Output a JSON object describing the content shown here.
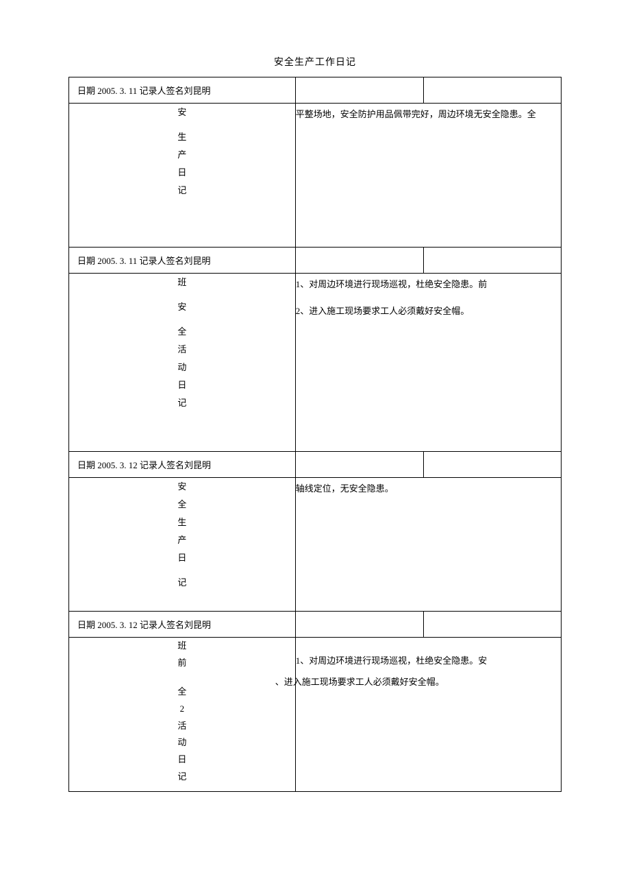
{
  "title": "安全生产工作日记",
  "colors": {
    "border": "#000000",
    "text": "#000000",
    "background": "#ffffff"
  },
  "typography": {
    "font_family": "SimSun",
    "title_fontsize": 14,
    "body_fontsize": 13
  },
  "sections": [
    {
      "header": {
        "date_label": "日期",
        "date_value": "2005. 3. 11",
        "recorder_label": "记录人签名",
        "recorder_name": "刘昆明",
        "cell1": "日期 2005. 3. 11 记录人签名刘昆明"
      },
      "vertical_label": "安 生产日记",
      "content": "平整场地，安全防护用品佩带完好，周边环境无安全隐患。全"
    },
    {
      "header": {
        "date_label": "日期",
        "date_value": "2005. 3. 11",
        "recorder_label": "记录人签名",
        "recorder_name": "刘昆明",
        "cell1": "日期 2005. 3. 11 记录人签名刘昆明"
      },
      "vertical_label": "班 安 全活动日记",
      "content_line1": "1、对周边环境进行现场巡视，杜绝安全隐患。前",
      "content_line2": "2、进入施工现场要求工人必须戴好安全帽。"
    },
    {
      "header": {
        "date_label": "日期",
        "date_value": "2005. 3. 12",
        "recorder_label": "记录人签名",
        "recorder_name": "刘昆明",
        "cell1": "日期 2005. 3. 12 记录人签名刘昆明"
      },
      "vertical_label": "安全生产日 记",
      "content": "轴线定位，无安全隐患。"
    },
    {
      "header": {
        "date_label": "日期",
        "date_value": "2005. 3. 12",
        "recorder_label": "记录人签名",
        "recorder_name": "刘昆明",
        "cell1": "日期 2005. 3. 12 记录人签名刘昆明"
      },
      "vertical_label_part1": "班前",
      "vertical_label_part2": "全 2",
      "vertical_label_part3": "活动日记",
      "content_line1": "1、对周边环境进行现场巡视，杜绝安全隐患。安",
      "content_line2": "、进入施工现场要求工人必须戴好安全帽。"
    }
  ]
}
